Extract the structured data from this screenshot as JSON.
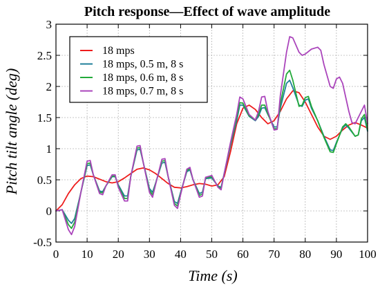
{
  "chart_data": {
    "type": "line",
    "title": "Pitch response—Effect of wave amplitude",
    "xlabel": "Time (s)",
    "ylabel": "Pitch tilt angle (deg)",
    "xlim": [
      0,
      100
    ],
    "ylim": [
      -0.5,
      3
    ],
    "xticks": [
      0,
      10,
      20,
      30,
      40,
      50,
      60,
      70,
      80,
      90,
      100
    ],
    "yticks": [
      -0.5,
      0,
      0.5,
      1,
      1.5,
      2,
      2.5,
      3
    ],
    "grid": true,
    "legend_position": "top-left",
    "series": [
      {
        "name": "18 mps",
        "color": "#ee1c1c",
        "points": [
          [
            0,
            0
          ],
          [
            2,
            0.1
          ],
          [
            4,
            0.28
          ],
          [
            6,
            0.42
          ],
          [
            8,
            0.52
          ],
          [
            10,
            0.56
          ],
          [
            12,
            0.55
          ],
          [
            14,
            0.51
          ],
          [
            16,
            0.47
          ],
          [
            18,
            0.45
          ],
          [
            20,
            0.47
          ],
          [
            22,
            0.53
          ],
          [
            24,
            0.6
          ],
          [
            26,
            0.67
          ],
          [
            28,
            0.69
          ],
          [
            30,
            0.66
          ],
          [
            32,
            0.6
          ],
          [
            34,
            0.52
          ],
          [
            36,
            0.44
          ],
          [
            38,
            0.38
          ],
          [
            40,
            0.37
          ],
          [
            42,
            0.39
          ],
          [
            44,
            0.42
          ],
          [
            46,
            0.44
          ],
          [
            48,
            0.43
          ],
          [
            50,
            0.4
          ],
          [
            52,
            0.42
          ],
          [
            54,
            0.55
          ],
          [
            56,
            0.95
          ],
          [
            58,
            1.4
          ],
          [
            60,
            1.65
          ],
          [
            62,
            1.7
          ],
          [
            64,
            1.63
          ],
          [
            66,
            1.5
          ],
          [
            68,
            1.4
          ],
          [
            70,
            1.45
          ],
          [
            72,
            1.6
          ],
          [
            74,
            1.8
          ],
          [
            76,
            1.93
          ],
          [
            78,
            1.9
          ],
          [
            80,
            1.75
          ],
          [
            82,
            1.55
          ],
          [
            84,
            1.35
          ],
          [
            86,
            1.2
          ],
          [
            88,
            1.15
          ],
          [
            90,
            1.2
          ],
          [
            92,
            1.3
          ],
          [
            94,
            1.38
          ],
          [
            96,
            1.42
          ],
          [
            98,
            1.38
          ],
          [
            100,
            1.33
          ]
        ]
      },
      {
        "name": "18 mps, 0.5 m, 8 s",
        "color": "#1f7f9a",
        "points": [
          [
            0,
            0
          ],
          [
            2,
            0.02
          ],
          [
            4,
            -0.15
          ],
          [
            5,
            -0.2
          ],
          [
            6,
            -0.12
          ],
          [
            8,
            0.3
          ],
          [
            10,
            0.73
          ],
          [
            11,
            0.74
          ],
          [
            12,
            0.58
          ],
          [
            14,
            0.32
          ],
          [
            15,
            0.31
          ],
          [
            16,
            0.4
          ],
          [
            18,
            0.55
          ],
          [
            19,
            0.55
          ],
          [
            20,
            0.42
          ],
          [
            22,
            0.24
          ],
          [
            23,
            0.24
          ],
          [
            24,
            0.55
          ],
          [
            26,
            0.98
          ],
          [
            27,
            0.99
          ],
          [
            28,
            0.78
          ],
          [
            30,
            0.36
          ],
          [
            31,
            0.3
          ],
          [
            32,
            0.45
          ],
          [
            34,
            0.77
          ],
          [
            35,
            0.78
          ],
          [
            36,
            0.55
          ],
          [
            38,
            0.15
          ],
          [
            39,
            0.12
          ],
          [
            40,
            0.3
          ],
          [
            42,
            0.63
          ],
          [
            43,
            0.66
          ],
          [
            44,
            0.5
          ],
          [
            46,
            0.28
          ],
          [
            47,
            0.3
          ],
          [
            48,
            0.52
          ],
          [
            50,
            0.53
          ],
          [
            52,
            0.4
          ],
          [
            53,
            0.38
          ],
          [
            54,
            0.6
          ],
          [
            56,
            1.05
          ],
          [
            58,
            1.45
          ],
          [
            59,
            1.7
          ],
          [
            60,
            1.7
          ],
          [
            62,
            1.52
          ],
          [
            64,
            1.45
          ],
          [
            65,
            1.52
          ],
          [
            66,
            1.65
          ],
          [
            67,
            1.66
          ],
          [
            68,
            1.55
          ],
          [
            70,
            1.35
          ],
          [
            71,
            1.35
          ],
          [
            72,
            1.65
          ],
          [
            74,
            2.05
          ],
          [
            75,
            2.1
          ],
          [
            76,
            1.98
          ],
          [
            78,
            1.7
          ],
          [
            79,
            1.68
          ],
          [
            80,
            1.78
          ],
          [
            81,
            1.8
          ],
          [
            82,
            1.65
          ],
          [
            84,
            1.45
          ],
          [
            86,
            1.2
          ],
          [
            88,
            0.98
          ],
          [
            89,
            0.97
          ],
          [
            90,
            1.1
          ],
          [
            92,
            1.33
          ],
          [
            93,
            1.38
          ],
          [
            94,
            1.33
          ],
          [
            96,
            1.2
          ],
          [
            97,
            1.22
          ],
          [
            98,
            1.45
          ],
          [
            99,
            1.5
          ],
          [
            100,
            1.28
          ]
        ]
      },
      {
        "name": "18 mps, 0.6 m, 8 s",
        "color": "#22aa3a",
        "points": [
          [
            0,
            0
          ],
          [
            2,
            0.02
          ],
          [
            4,
            -0.22
          ],
          [
            5,
            -0.28
          ],
          [
            6,
            -0.18
          ],
          [
            8,
            0.3
          ],
          [
            10,
            0.76
          ],
          [
            11,
            0.77
          ],
          [
            12,
            0.58
          ],
          [
            14,
            0.3
          ],
          [
            15,
            0.29
          ],
          [
            16,
            0.4
          ],
          [
            18,
            0.56
          ],
          [
            19,
            0.56
          ],
          [
            20,
            0.4
          ],
          [
            22,
            0.2
          ],
          [
            23,
            0.2
          ],
          [
            24,
            0.55
          ],
          [
            26,
            1.01
          ],
          [
            27,
            1.02
          ],
          [
            28,
            0.78
          ],
          [
            30,
            0.33
          ],
          [
            31,
            0.26
          ],
          [
            32,
            0.44
          ],
          [
            34,
            0.8
          ],
          [
            35,
            0.81
          ],
          [
            36,
            0.55
          ],
          [
            38,
            0.12
          ],
          [
            39,
            0.08
          ],
          [
            40,
            0.28
          ],
          [
            42,
            0.65
          ],
          [
            43,
            0.68
          ],
          [
            44,
            0.5
          ],
          [
            46,
            0.25
          ],
          [
            47,
            0.27
          ],
          [
            48,
            0.53
          ],
          [
            50,
            0.55
          ],
          [
            52,
            0.39
          ],
          [
            53,
            0.36
          ],
          [
            54,
            0.6
          ],
          [
            56,
            1.07
          ],
          [
            58,
            1.5
          ],
          [
            59,
            1.74
          ],
          [
            60,
            1.73
          ],
          [
            62,
            1.53
          ],
          [
            64,
            1.46
          ],
          [
            65,
            1.55
          ],
          [
            66,
            1.7
          ],
          [
            67,
            1.7
          ],
          [
            68,
            1.56
          ],
          [
            70,
            1.32
          ],
          [
            71,
            1.32
          ],
          [
            72,
            1.72
          ],
          [
            74,
            2.2
          ],
          [
            75,
            2.26
          ],
          [
            76,
            2.1
          ],
          [
            78,
            1.68
          ],
          [
            79,
            1.7
          ],
          [
            80,
            1.82
          ],
          [
            81,
            1.84
          ],
          [
            82,
            1.68
          ],
          [
            84,
            1.45
          ],
          [
            86,
            1.18
          ],
          [
            88,
            0.95
          ],
          [
            89,
            0.94
          ],
          [
            90,
            1.08
          ],
          [
            92,
            1.35
          ],
          [
            93,
            1.4
          ],
          [
            94,
            1.35
          ],
          [
            96,
            1.2
          ],
          [
            97,
            1.22
          ],
          [
            98,
            1.48
          ],
          [
            99,
            1.55
          ],
          [
            100,
            1.3
          ]
        ]
      },
      {
        "name": "18 mps, 0.7 m, 8 s",
        "color": "#aa44bb",
        "points": [
          [
            0,
            0
          ],
          [
            2,
            0.02
          ],
          [
            4,
            -0.3
          ],
          [
            5,
            -0.38
          ],
          [
            6,
            -0.25
          ],
          [
            8,
            0.3
          ],
          [
            10,
            0.8
          ],
          [
            11,
            0.81
          ],
          [
            12,
            0.58
          ],
          [
            14,
            0.28
          ],
          [
            15,
            0.26
          ],
          [
            16,
            0.4
          ],
          [
            18,
            0.58
          ],
          [
            19,
            0.58
          ],
          [
            20,
            0.38
          ],
          [
            22,
            0.16
          ],
          [
            23,
            0.16
          ],
          [
            24,
            0.55
          ],
          [
            26,
            1.04
          ],
          [
            27,
            1.05
          ],
          [
            28,
            0.78
          ],
          [
            30,
            0.3
          ],
          [
            31,
            0.22
          ],
          [
            32,
            0.43
          ],
          [
            34,
            0.83
          ],
          [
            35,
            0.84
          ],
          [
            36,
            0.55
          ],
          [
            38,
            0.09
          ],
          [
            39,
            0.04
          ],
          [
            40,
            0.26
          ],
          [
            42,
            0.67
          ],
          [
            43,
            0.7
          ],
          [
            44,
            0.5
          ],
          [
            46,
            0.22
          ],
          [
            47,
            0.24
          ],
          [
            48,
            0.54
          ],
          [
            50,
            0.57
          ],
          [
            52,
            0.38
          ],
          [
            53,
            0.34
          ],
          [
            54,
            0.6
          ],
          [
            56,
            1.1
          ],
          [
            58,
            1.55
          ],
          [
            59,
            1.83
          ],
          [
            60,
            1.8
          ],
          [
            62,
            1.55
          ],
          [
            64,
            1.46
          ],
          [
            65,
            1.6
          ],
          [
            66,
            1.83
          ],
          [
            67,
            1.84
          ],
          [
            68,
            1.6
          ],
          [
            70,
            1.3
          ],
          [
            71,
            1.31
          ],
          [
            72,
            1.85
          ],
          [
            74,
            2.55
          ],
          [
            75,
            2.8
          ],
          [
            76,
            2.78
          ],
          [
            78,
            2.55
          ],
          [
            79,
            2.5
          ],
          [
            80,
            2.52
          ],
          [
            82,
            2.6
          ],
          [
            84,
            2.63
          ],
          [
            85,
            2.58
          ],
          [
            86,
            2.35
          ],
          [
            88,
            2.0
          ],
          [
            89,
            1.97
          ],
          [
            90,
            2.12
          ],
          [
            91,
            2.15
          ],
          [
            92,
            2.05
          ],
          [
            94,
            1.6
          ],
          [
            95,
            1.42
          ],
          [
            96,
            1.4
          ],
          [
            98,
            1.6
          ],
          [
            99,
            1.7
          ],
          [
            100,
            1.4
          ]
        ]
      }
    ]
  }
}
